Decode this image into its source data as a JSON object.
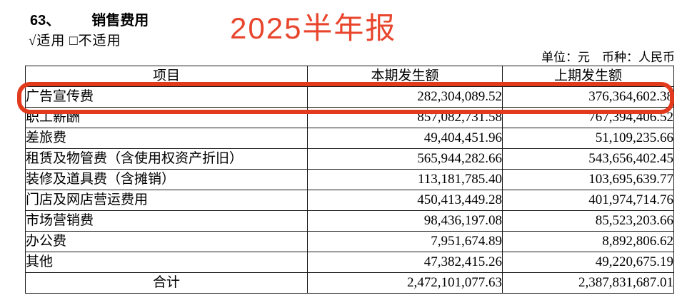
{
  "page": {
    "section_number": "63、",
    "section_title": "销售费用",
    "applicability": "√适用  □不适用",
    "annotation": "2025半年报",
    "unit_note": "单位：元　币种：人民币"
  },
  "colors": {
    "annotation_red": "#e8452c",
    "highlight_border_red": "#e23a1d",
    "table_border": "#1a1a1a"
  },
  "table": {
    "headers": {
      "item": "项目",
      "current_period": "本期发生额",
      "prior_period": "上期发生额"
    },
    "rows": [
      {
        "item": "广告宣传费",
        "current": "282,304,089.52",
        "prior": "376,364,602.38",
        "highlighted": true
      },
      {
        "item": "职工薪酬",
        "current": "857,082,731.58",
        "prior": "767,394,406.52",
        "highlighted": false
      },
      {
        "item": "差旅费",
        "current": "49,404,451.96",
        "prior": "51,109,235.66",
        "highlighted": false
      },
      {
        "item": "租赁及物管费（含使用权资产折旧）",
        "current": "565,944,282.66",
        "prior": "543,656,402.45",
        "highlighted": false
      },
      {
        "item": "装修及道具费（含摊销）",
        "current": "113,181,785.40",
        "prior": "103,695,639.77",
        "highlighted": false
      },
      {
        "item": "门店及网店营运费用",
        "current": "450,413,449.28",
        "prior": "401,974,714.76",
        "highlighted": false
      },
      {
        "item": "市场营销费",
        "current": "98,436,197.08",
        "prior": "85,523,203.66",
        "highlighted": false
      },
      {
        "item": "办公费",
        "current": "7,951,674.89",
        "prior": "8,892,806.62",
        "highlighted": false
      },
      {
        "item": "其他",
        "current": "47,382,415.26",
        "prior": "49,220,675.19",
        "highlighted": false
      }
    ],
    "total_row": {
      "item": "合计",
      "current": "2,472,101,077.63",
      "prior": "2,387,831,687.01"
    }
  }
}
